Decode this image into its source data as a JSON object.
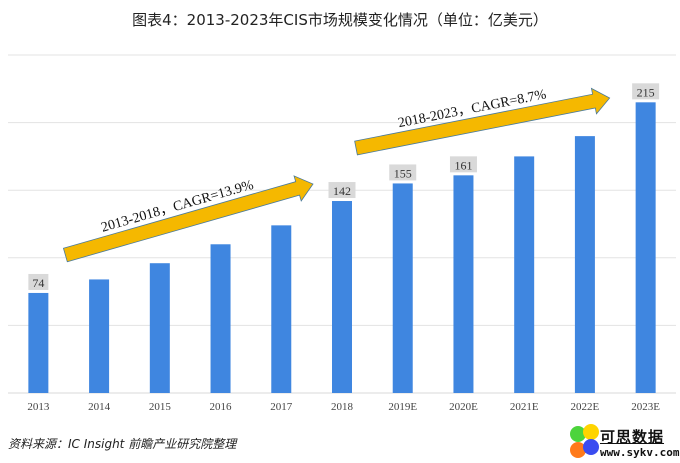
{
  "chart_data": {
    "type": "bar",
    "title": "图表4：2013-2023年CIS市场规模变化情况（单位：亿美元）",
    "xlabel": "",
    "ylabel": "",
    "categories": [
      "2013",
      "2014",
      "2015",
      "2016",
      "2017",
      "2018",
      "2019E",
      "2020E",
      "2021E",
      "2022E",
      "2023E"
    ],
    "values": [
      74,
      84,
      96,
      110,
      124,
      142,
      155,
      161,
      175,
      190,
      215
    ],
    "data_labels": {
      "2013": "74",
      "2018": "142",
      "2019E": "155",
      "2020E": "161",
      "2023E": "215"
    },
    "ylim": [
      0,
      250
    ],
    "gridlines": [
      50,
      100,
      150,
      200,
      250
    ],
    "grid": true,
    "y_axis_labels_visible": false,
    "bar_color": "#3f86e0",
    "annotations": [
      {
        "text": "2013-2018，CAGR=13.9%",
        "from": "2013",
        "to": "2018",
        "type": "arrow",
        "color": "#f5b800"
      },
      {
        "text": "2018-2023，CAGR=8.7%",
        "from": "2018",
        "to": "2023E",
        "type": "arrow",
        "color": "#f5b800"
      }
    ]
  },
  "footer": {
    "source": "资料来源：IC Insight 前瞻产业研究院整理"
  },
  "logo": {
    "brand": "可思数据",
    "url": "www.sykv.com"
  }
}
